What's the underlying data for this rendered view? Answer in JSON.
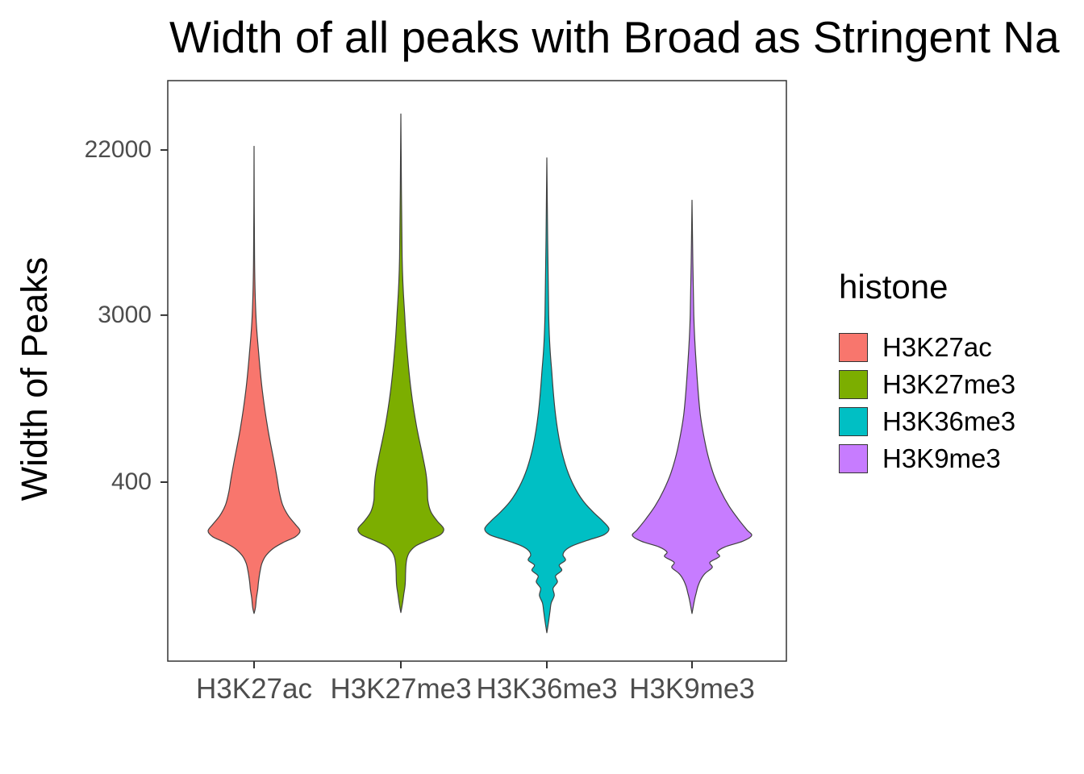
{
  "chart_data": {
    "type": "violin",
    "title": "Width of all peaks with Broad as Stringent Na",
    "ylabel": "Width of Peaks",
    "xlabel": "",
    "y_scale": "log10",
    "y_ticks": [
      22000,
      3000,
      400
    ],
    "categories": [
      "H3K27ac",
      "H3K27me3",
      "H3K36me3",
      "H3K9me3"
    ],
    "legend_title": "histone",
    "grid": false,
    "legend_position": "right",
    "series": [
      {
        "name": "H3K27ac",
        "color": "#F8766D",
        "relative_width": 0.74,
        "profile": [
          [
            23000,
            0.0
          ],
          [
            6000,
            0.01
          ],
          [
            3000,
            0.04
          ],
          [
            1900,
            0.1
          ],
          [
            1200,
            0.18
          ],
          [
            760,
            0.3
          ],
          [
            520,
            0.43
          ],
          [
            420,
            0.5
          ],
          [
            355,
            0.55
          ],
          [
            305,
            0.62
          ],
          [
            268,
            0.74
          ],
          [
            240,
            0.9
          ],
          [
            222,
            1.0
          ],
          [
            207,
            0.9
          ],
          [
            194,
            0.65
          ],
          [
            180,
            0.42
          ],
          [
            165,
            0.26
          ],
          [
            150,
            0.17
          ],
          [
            136,
            0.13
          ],
          [
            122,
            0.1
          ],
          [
            110,
            0.08
          ],
          [
            98,
            0.05
          ],
          [
            88,
            0.03
          ],
          [
            82,
            0.0
          ]
        ]
      },
      {
        "name": "H3K27me3",
        "color": "#7CAE00",
        "relative_width": 0.69,
        "profile": [
          [
            34000,
            0.0
          ],
          [
            6000,
            0.03
          ],
          [
            3000,
            0.09
          ],
          [
            1900,
            0.15
          ],
          [
            1200,
            0.24
          ],
          [
            800,
            0.36
          ],
          [
            560,
            0.5
          ],
          [
            440,
            0.59
          ],
          [
            370,
            0.62
          ],
          [
            320,
            0.63
          ],
          [
            280,
            0.7
          ],
          [
            250,
            0.85
          ],
          [
            228,
            1.0
          ],
          [
            212,
            0.92
          ],
          [
            198,
            0.62
          ],
          [
            186,
            0.36
          ],
          [
            174,
            0.22
          ],
          [
            162,
            0.15
          ],
          [
            148,
            0.12
          ],
          [
            132,
            0.11
          ],
          [
            116,
            0.1
          ],
          [
            104,
            0.07
          ],
          [
            93,
            0.04
          ],
          [
            83,
            0.0
          ]
        ]
      },
      {
        "name": "H3K36me3",
        "color": "#00BFC4",
        "relative_width": 1.0,
        "profile": [
          [
            20000,
            0.0
          ],
          [
            3000,
            0.03
          ],
          [
            1500,
            0.08
          ],
          [
            900,
            0.14
          ],
          [
            620,
            0.22
          ],
          [
            470,
            0.32
          ],
          [
            380,
            0.44
          ],
          [
            320,
            0.58
          ],
          [
            280,
            0.74
          ],
          [
            250,
            0.9
          ],
          [
            228,
            1.0
          ],
          [
            212,
            0.92
          ],
          [
            198,
            0.65
          ],
          [
            186,
            0.42
          ],
          [
            176,
            0.3
          ],
          [
            166,
            0.26
          ],
          [
            156,
            0.3
          ],
          [
            147,
            0.2
          ],
          [
            138,
            0.24
          ],
          [
            129,
            0.14
          ],
          [
            120,
            0.17
          ],
          [
            111,
            0.1
          ],
          [
            102,
            0.12
          ],
          [
            93,
            0.07
          ],
          [
            84,
            0.05
          ],
          [
            75,
            0.03
          ],
          [
            65,
            0.0
          ]
        ]
      },
      {
        "name": "H3K9me3",
        "color": "#C77CFF",
        "relative_width": 0.96,
        "profile": [
          [
            12000,
            0.0
          ],
          [
            3000,
            0.03
          ],
          [
            1500,
            0.08
          ],
          [
            900,
            0.14
          ],
          [
            600,
            0.24
          ],
          [
            450,
            0.35
          ],
          [
            360,
            0.48
          ],
          [
            300,
            0.62
          ],
          [
            255,
            0.78
          ],
          [
            225,
            0.92
          ],
          [
            210,
            1.0
          ],
          [
            196,
            0.85
          ],
          [
            183,
            0.55
          ],
          [
            172,
            0.42
          ],
          [
            163,
            0.46
          ],
          [
            152,
            0.3
          ],
          [
            143,
            0.34
          ],
          [
            133,
            0.22
          ],
          [
            124,
            0.15
          ],
          [
            114,
            0.1
          ],
          [
            105,
            0.07
          ],
          [
            96,
            0.04
          ],
          [
            82,
            0.0
          ]
        ]
      }
    ]
  }
}
